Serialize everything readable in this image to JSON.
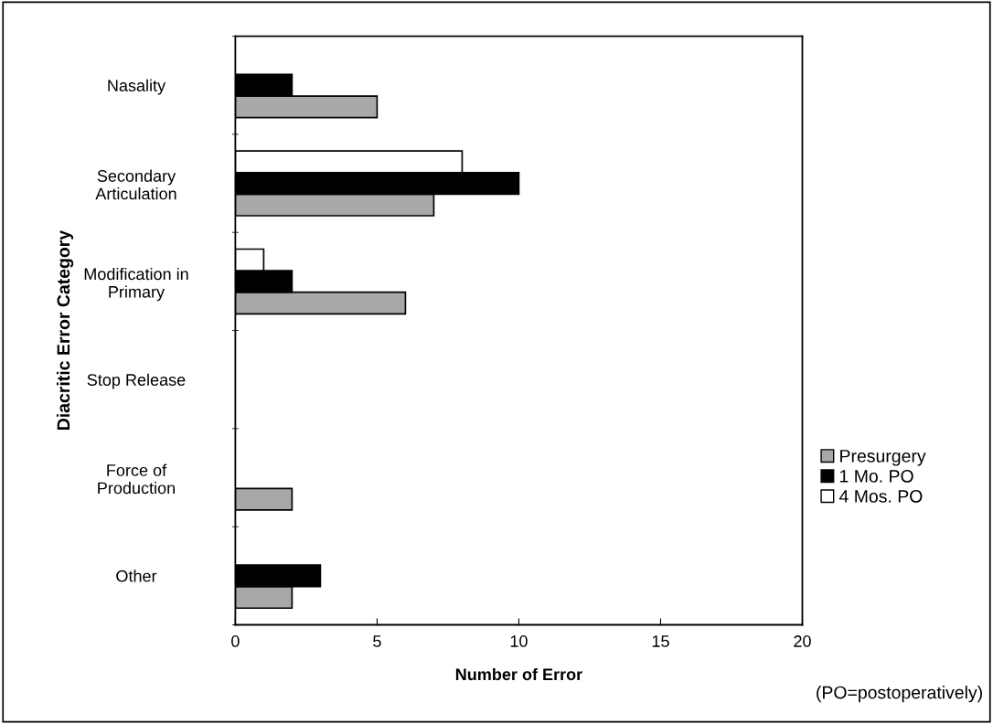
{
  "chart_data": {
    "type": "bar",
    "orientation": "horizontal",
    "categories": [
      "Nasality",
      "Secondary\nArticulation",
      "Modification in\nPrimary",
      "Stop Release",
      "Force of\nProduction",
      "Other"
    ],
    "series": [
      {
        "name": "Presurgery",
        "color": "#a8a8a8",
        "values": [
          5,
          7,
          6,
          null,
          2,
          2
        ]
      },
      {
        "name": "1 Mo. PO",
        "color": "#000000",
        "values": [
          2,
          10,
          2,
          null,
          null,
          3
        ]
      },
      {
        "name": "4 Mos. PO",
        "color": "#ffffff",
        "values": [
          null,
          8,
          1,
          null,
          null,
          null
        ]
      }
    ],
    "xlim": [
      0,
      20
    ],
    "xticks": [
      0,
      5,
      10,
      15,
      20
    ],
    "xlabel": "Number of Error",
    "ylabel": "Diacritic Error Category",
    "legend": "right",
    "grid": false,
    "annotations": [
      "(PO=postoperatively)"
    ]
  }
}
